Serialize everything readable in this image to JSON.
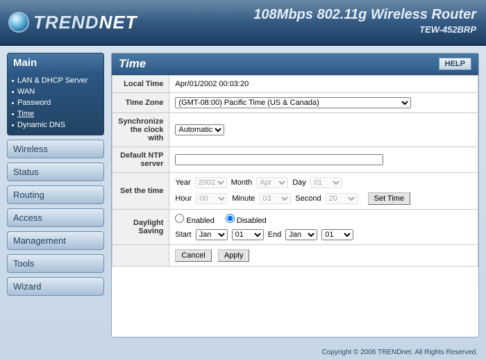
{
  "header": {
    "brand": "TRENDNET",
    "product_title": "108Mbps 802.11g Wireless Router",
    "model": "TEW-452BRP"
  },
  "sidebar": {
    "active_section": "Main",
    "sub_items": [
      "LAN & DHCP Server",
      "WAN",
      "Password",
      "Time",
      "Dynamic DNS"
    ],
    "current_sub": "Time",
    "sections": [
      "Wireless",
      "Status",
      "Routing",
      "Access",
      "Management",
      "Tools",
      "Wizard"
    ]
  },
  "panel": {
    "title": "Time",
    "help_label": "HELP"
  },
  "form": {
    "local_time_label": "Local Time",
    "local_time_value": "Apr/01/2002 00:03:20",
    "timezone_label": "Time Zone",
    "timezone_value": "(GMT-08:00) Pacific Time (US & Canada)",
    "sync_label": "Synchronize the clock with",
    "sync_value": "Automatic",
    "ntp_label": "Default NTP server",
    "ntp_value": "",
    "settime_label": "Set the time",
    "year_label": "Year",
    "year_value": "2002",
    "month_label": "Month",
    "month_value": "Apr",
    "day_label": "Day",
    "day_value": "01",
    "hour_label": "Hour",
    "hour_value": "00",
    "minute_label": "Minute",
    "minute_value": "03",
    "second_label": "Second",
    "second_value": "20",
    "set_time_btn": "Set Time",
    "dst_label": "Daylight Saving",
    "dst_enabled_label": "Enabled",
    "dst_disabled_label": "Disabled",
    "dst_selected": "Disabled",
    "dst_start_label": "Start",
    "dst_start_month": "Jan",
    "dst_start_day": "01",
    "dst_end_label": "End",
    "dst_end_month": "Jan",
    "dst_end_day": "01",
    "cancel_btn": "Cancel",
    "apply_btn": "Apply"
  },
  "footer": "Copyright © 2006 TRENDnet. All Rights Reserved."
}
